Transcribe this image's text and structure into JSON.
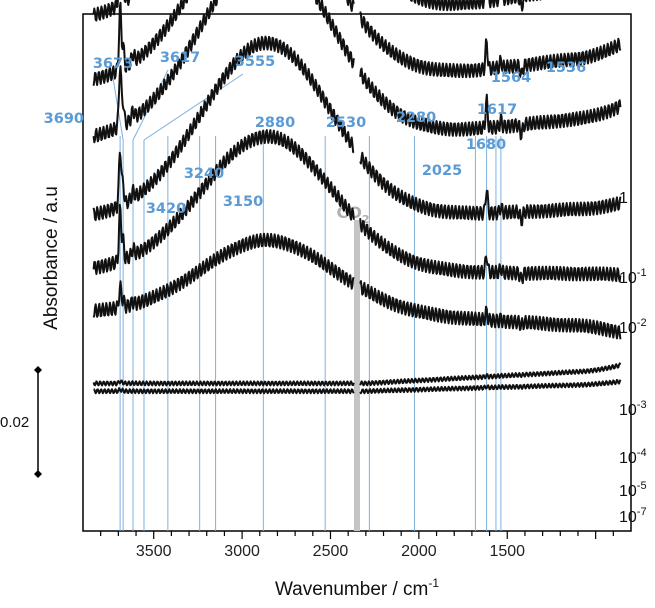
{
  "chart_data": {
    "type": "line",
    "title": "",
    "xlabel": "Wavenumber / cm",
    "xlabel_sup": "-1",
    "ylabel": "Absorbance / a.u",
    "xlim": [
      3900,
      800
    ],
    "x_reversed": true,
    "x_ticks": [
      3500,
      3000,
      2500,
      2000,
      1500
    ],
    "scale_bar": {
      "label": "0.02",
      "value": 0.02
    },
    "co2_band": {
      "label": "CO",
      "sub": "2",
      "x": 2350
    },
    "annotations": [
      {
        "label": "3690",
        "x": 3690
      },
      {
        "label": "3673",
        "x": 3673
      },
      {
        "label": "3617",
        "x": 3617
      },
      {
        "label": "3555",
        "x": 3555
      },
      {
        "label": "3420",
        "x": 3420
      },
      {
        "label": "3240",
        "x": 3240
      },
      {
        "label": "3150",
        "x": 3150
      },
      {
        "label": "2880",
        "x": 2880
      },
      {
        "label": "2530",
        "x": 2530
      },
      {
        "label": "2280",
        "x": 2280
      },
      {
        "label": "2025",
        "x": 2025
      },
      {
        "label": "1680",
        "x": 1680
      },
      {
        "label": "1617",
        "x": 1617
      },
      {
        "label": "1564",
        "x": 1564
      },
      {
        "label": "1536",
        "x": 1536
      }
    ],
    "series": [
      {
        "name": "1",
        "base": 0.1,
        "broad": 0.044,
        "sharp": 0.013,
        "p1617": 0.0062,
        "tail": 0.0085
      },
      {
        "name": "10",
        "sup": "-1",
        "base": 0.088,
        "broad": 0.036,
        "sharp": 0.012,
        "p1617": 0.0052,
        "tail": 0.0062
      },
      {
        "name": "10",
        "sup": "-2",
        "base": 0.077,
        "broad": 0.037,
        "sharp": 0.012,
        "p1617": 0.0052,
        "tail": 0.0055
      },
      {
        "name": "10",
        "sup": "-3",
        "base": 0.062,
        "broad": 0.034,
        "sharp": 0.011,
        "p1617": 0.0047,
        "tail": 0.0025
      },
      {
        "name": "10",
        "sup": "-4",
        "base": 0.052,
        "broad": 0.026,
        "sharp": 0.01,
        "p1617": 0.0034,
        "tail": -0.0005
      },
      {
        "name": "10",
        "sup": "-5",
        "base": 0.044,
        "broad": 0.014,
        "sharp": 0.004,
        "p1617": 0.0015,
        "tail": -0.003
      },
      {
        "name": "",
        "base": 0.0305,
        "broad": 0,
        "sharp": 0.0004,
        "p1617": 0.0002,
        "tail": 0.0028
      },
      {
        "name": "10",
        "sup": "-7",
        "base": 0.029,
        "broad": 0,
        "sharp": 0.0003,
        "p1617": 0.0002,
        "tail": 0.0015
      }
    ]
  }
}
